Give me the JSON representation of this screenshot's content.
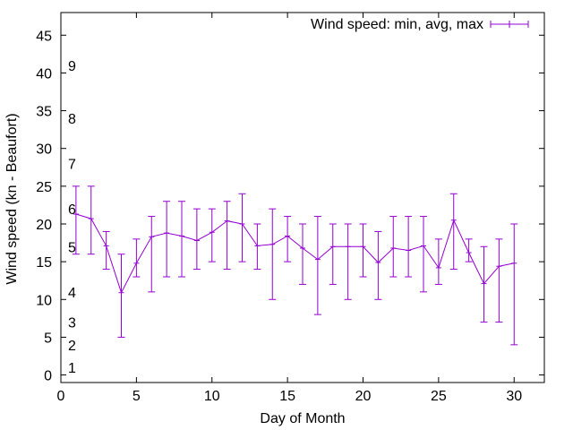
{
  "chart_data": {
    "type": "line",
    "title": "",
    "xlabel": "Day of Month",
    "ylabel": "Wind speed (kn - Beaufort)",
    "xlim": [
      0,
      32
    ],
    "ylim": [
      -1,
      48
    ],
    "xticks": [
      0,
      5,
      10,
      15,
      20,
      25,
      30
    ],
    "yticks": [
      0,
      5,
      10,
      15,
      20,
      25,
      30,
      35,
      40,
      45
    ],
    "grid": false,
    "legend_position": "top-right",
    "beaufort_labels": [
      {
        "label": "1",
        "value": 1
      },
      {
        "label": "2",
        "value": 4
      },
      {
        "label": "3",
        "value": 7
      },
      {
        "label": "4",
        "value": 11
      },
      {
        "label": "5",
        "value": 17
      },
      {
        "label": "6",
        "value": 22
      },
      {
        "label": "7",
        "value": 28
      },
      {
        "label": "8",
        "value": 34
      },
      {
        "label": "9",
        "value": 41
      }
    ],
    "series": [
      {
        "name": "Wind speed: min, avg, max",
        "color": "#9400d3",
        "x": [
          1,
          2,
          3,
          4,
          5,
          6,
          7,
          8,
          9,
          10,
          11,
          12,
          13,
          14,
          15,
          16,
          17,
          18,
          19,
          20,
          21,
          22,
          23,
          24,
          25,
          26,
          27,
          28,
          29,
          30
        ],
        "avg": [
          21.3,
          20.7,
          17.1,
          10.9,
          14.8,
          18.3,
          18.8,
          18.4,
          17.8,
          18.9,
          20.4,
          20.0,
          17.1,
          17.3,
          18.4,
          16.8,
          15.3,
          17.0,
          17.0,
          17.0,
          14.9,
          16.8,
          16.5,
          17.1,
          14.2,
          20.5,
          16.2,
          12.1,
          14.4,
          14.8
        ],
        "min": [
          16,
          16,
          14,
          5,
          13,
          11,
          13,
          13,
          14,
          15,
          14,
          15,
          14,
          10,
          15,
          12,
          8,
          12,
          10,
          13,
          10,
          13,
          13,
          11,
          12,
          14,
          15,
          7,
          7,
          4
        ],
        "max": [
          25,
          25,
          19,
          16,
          18,
          21,
          23,
          23,
          22,
          22,
          23,
          24,
          20,
          22,
          21,
          20,
          21,
          20,
          20,
          20,
          19,
          21,
          21,
          21,
          18,
          24,
          18,
          17,
          18,
          20
        ]
      }
    ]
  }
}
